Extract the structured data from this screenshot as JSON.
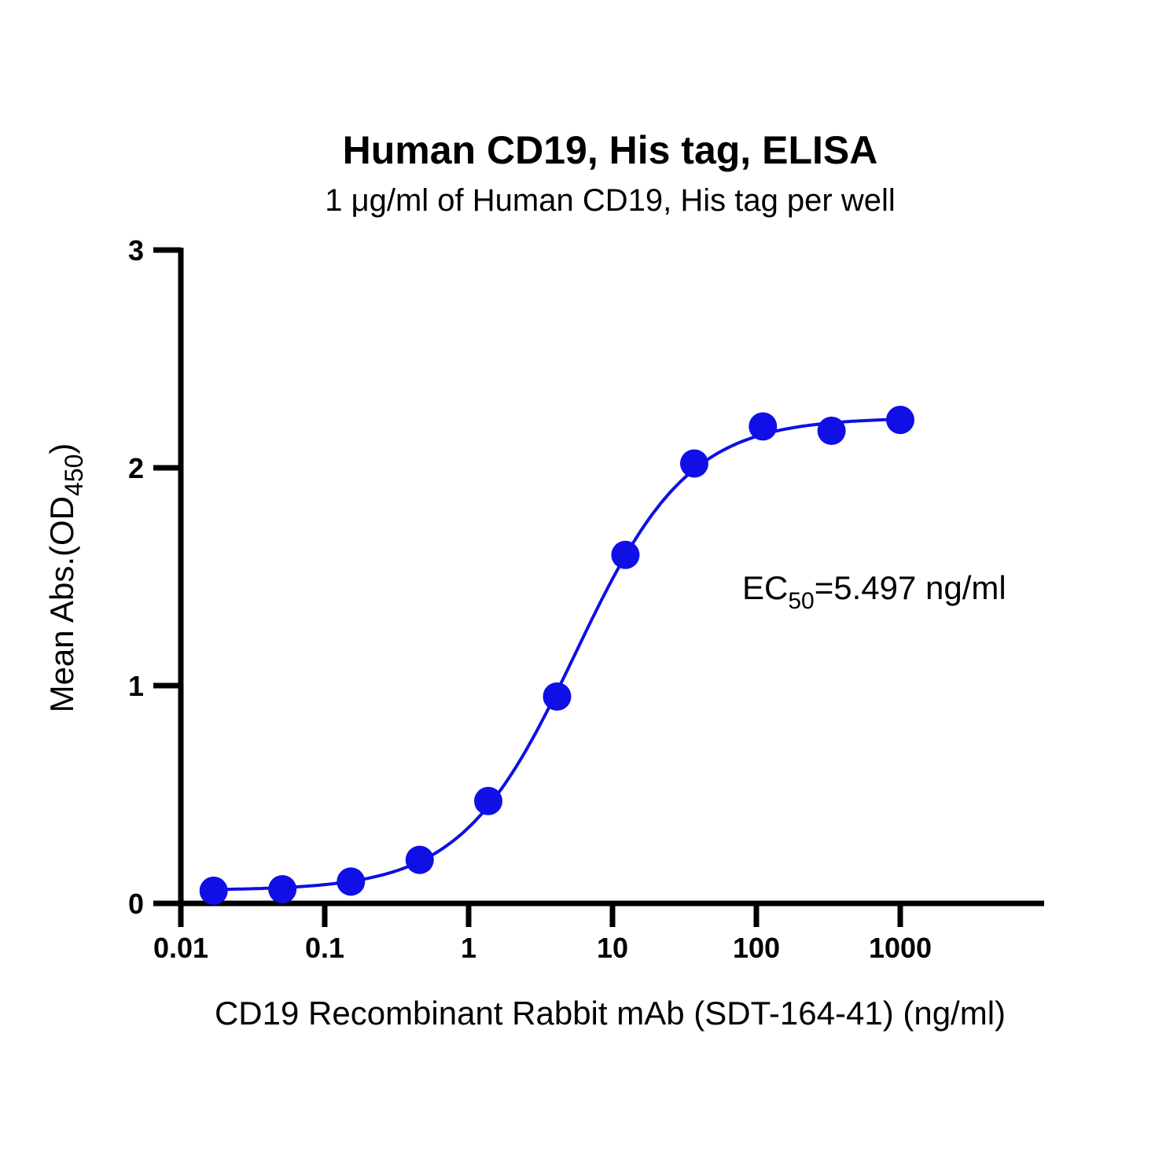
{
  "chart_data": {
    "type": "scatter",
    "title": "Human CD19, His tag, ELISA",
    "subtitle": "1 μg/ml of Human CD19, His tag per well",
    "xlabel": "CD19 Recombinant Rabbit mAb (SDT-164-41) (ng/ml)",
    "ylabel_main": "Mean Abs.(OD",
    "ylabel_sub": "450",
    "ylabel_end": ")",
    "xscale": "log",
    "xlim": [
      0.01,
      10000
    ],
    "ylim": [
      0,
      3
    ],
    "xticks": [
      0.01,
      0.1,
      1,
      10,
      100,
      1000
    ],
    "xtick_labels": [
      "0.01",
      "0.1",
      "1",
      "10",
      "100",
      "1000"
    ],
    "yticks": [
      0,
      1,
      2,
      3
    ],
    "ytick_labels": [
      "0",
      "1",
      "2",
      "3"
    ],
    "grid": false,
    "color": "#0f0fe6",
    "series": [
      {
        "name": "CD19 Recombinant Rabbit mAb",
        "x": [
          0.0169,
          0.0508,
          0.152,
          0.457,
          1.37,
          4.12,
          12.3,
          37.0,
          111,
          333,
          1000
        ],
        "y": [
          0.058,
          0.065,
          0.1,
          0.2,
          0.47,
          0.95,
          1.6,
          2.02,
          2.19,
          2.17,
          2.22
        ]
      }
    ],
    "fit": {
      "model": "4PL",
      "bottom": 0.06,
      "top": 2.23,
      "ec50": 5.497,
      "hill": 1.1
    },
    "annotation": {
      "prefix": "EC",
      "sub": "50",
      "suffix": "=5.497 ng/ml"
    }
  }
}
